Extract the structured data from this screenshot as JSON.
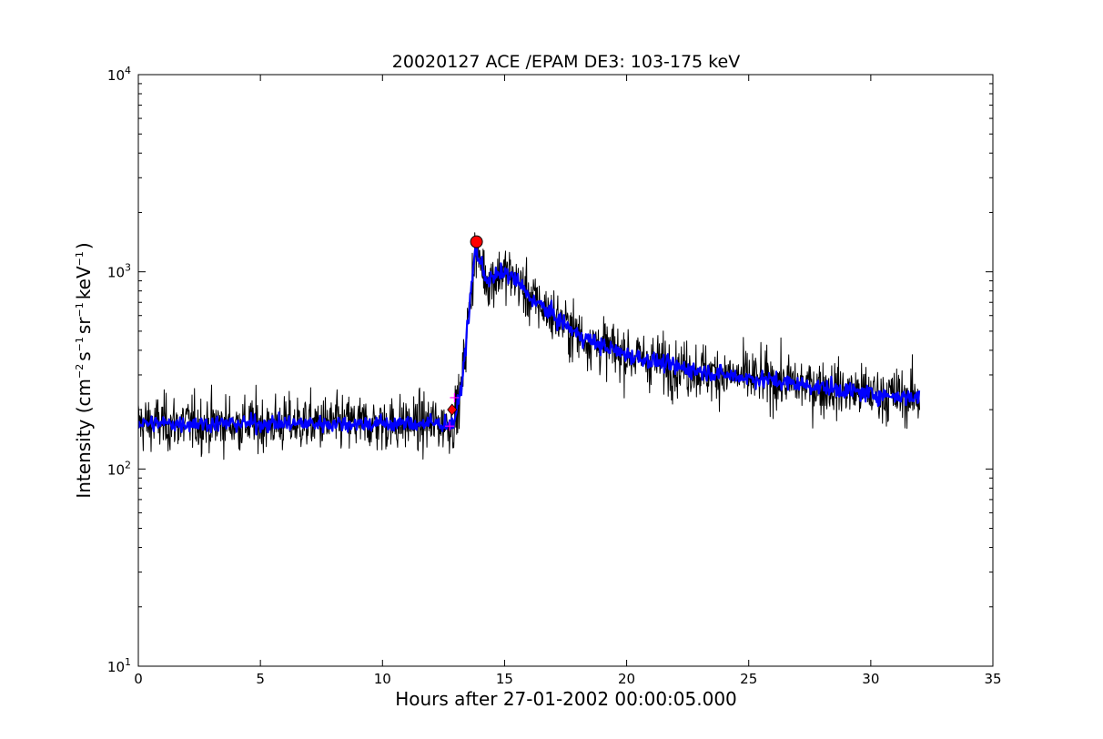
{
  "chart_data": {
    "type": "line",
    "title": "20020127 ACE /EPAM DE3: 103-175 keV",
    "xlabel": "Hours after 27-01-2002 00:00:05.000",
    "ylabel": "Intensity (cm⁻² s⁻¹ sr⁻¹ keV⁻¹)",
    "ylabel_parts": {
      "pre": "Intensity (cm",
      "e1": "−2",
      "s": "s",
      "e2": "−1",
      "sr": "sr",
      "e3": "−1",
      "kev": "keV",
      "e4": "−1",
      "post": ")"
    },
    "xlim": [
      0,
      35
    ],
    "ylim": [
      10,
      10000
    ],
    "yscale": "log",
    "grid": false,
    "x_ticks": [
      0,
      5,
      10,
      15,
      20,
      25,
      30,
      35
    ],
    "x_tick_labels": [
      "0",
      "5",
      "10",
      "15",
      "20",
      "25",
      "30",
      "35"
    ],
    "y_ticks": [
      10,
      100,
      1000,
      10000
    ],
    "y_tick_labels": [
      {
        "base": "10",
        "exp": "1"
      },
      {
        "base": "10",
        "exp": "2"
      },
      {
        "base": "10",
        "exp": "3"
      },
      {
        "base": "10",
        "exp": "4"
      }
    ],
    "series": [
      {
        "kind": "raw",
        "color": "#000000",
        "x": [
          0,
          12.5,
          12.9,
          13.2,
          13.5,
          13.8,
          14.3,
          15,
          15.5,
          16,
          17,
          18,
          19,
          20,
          22,
          24,
          26,
          28,
          30,
          32
        ],
        "values": [
          170,
          170,
          170,
          240,
          550,
          1300,
          900,
          1000,
          900,
          750,
          600,
          480,
          420,
          380,
          330,
          300,
          280,
          260,
          240,
          230
        ]
      },
      {
        "kind": "smoothed",
        "color": "#0000ff",
        "x": [
          0,
          12.5,
          12.9,
          13.2,
          13.5,
          13.8,
          14.3,
          15,
          15.5,
          16,
          17,
          18,
          19,
          20,
          22,
          24,
          26,
          28,
          30,
          32
        ],
        "values": [
          170,
          170,
          170,
          240,
          550,
          1300,
          900,
          1000,
          900,
          750,
          600,
          480,
          420,
          380,
          330,
          300,
          280,
          260,
          240,
          230
        ]
      }
    ],
    "markers": [
      {
        "kind": "onset-cross",
        "x": 12.75,
        "y": 165,
        "color": "#ff00ff"
      },
      {
        "kind": "onset-cross",
        "x": 12.95,
        "y": 230,
        "color": "#ff00ff"
      },
      {
        "kind": "onset",
        "x": 12.85,
        "y": 200,
        "color": "#ff0000"
      },
      {
        "kind": "peak",
        "x": 13.85,
        "y": 1420,
        "color": "#ff0000"
      }
    ]
  }
}
